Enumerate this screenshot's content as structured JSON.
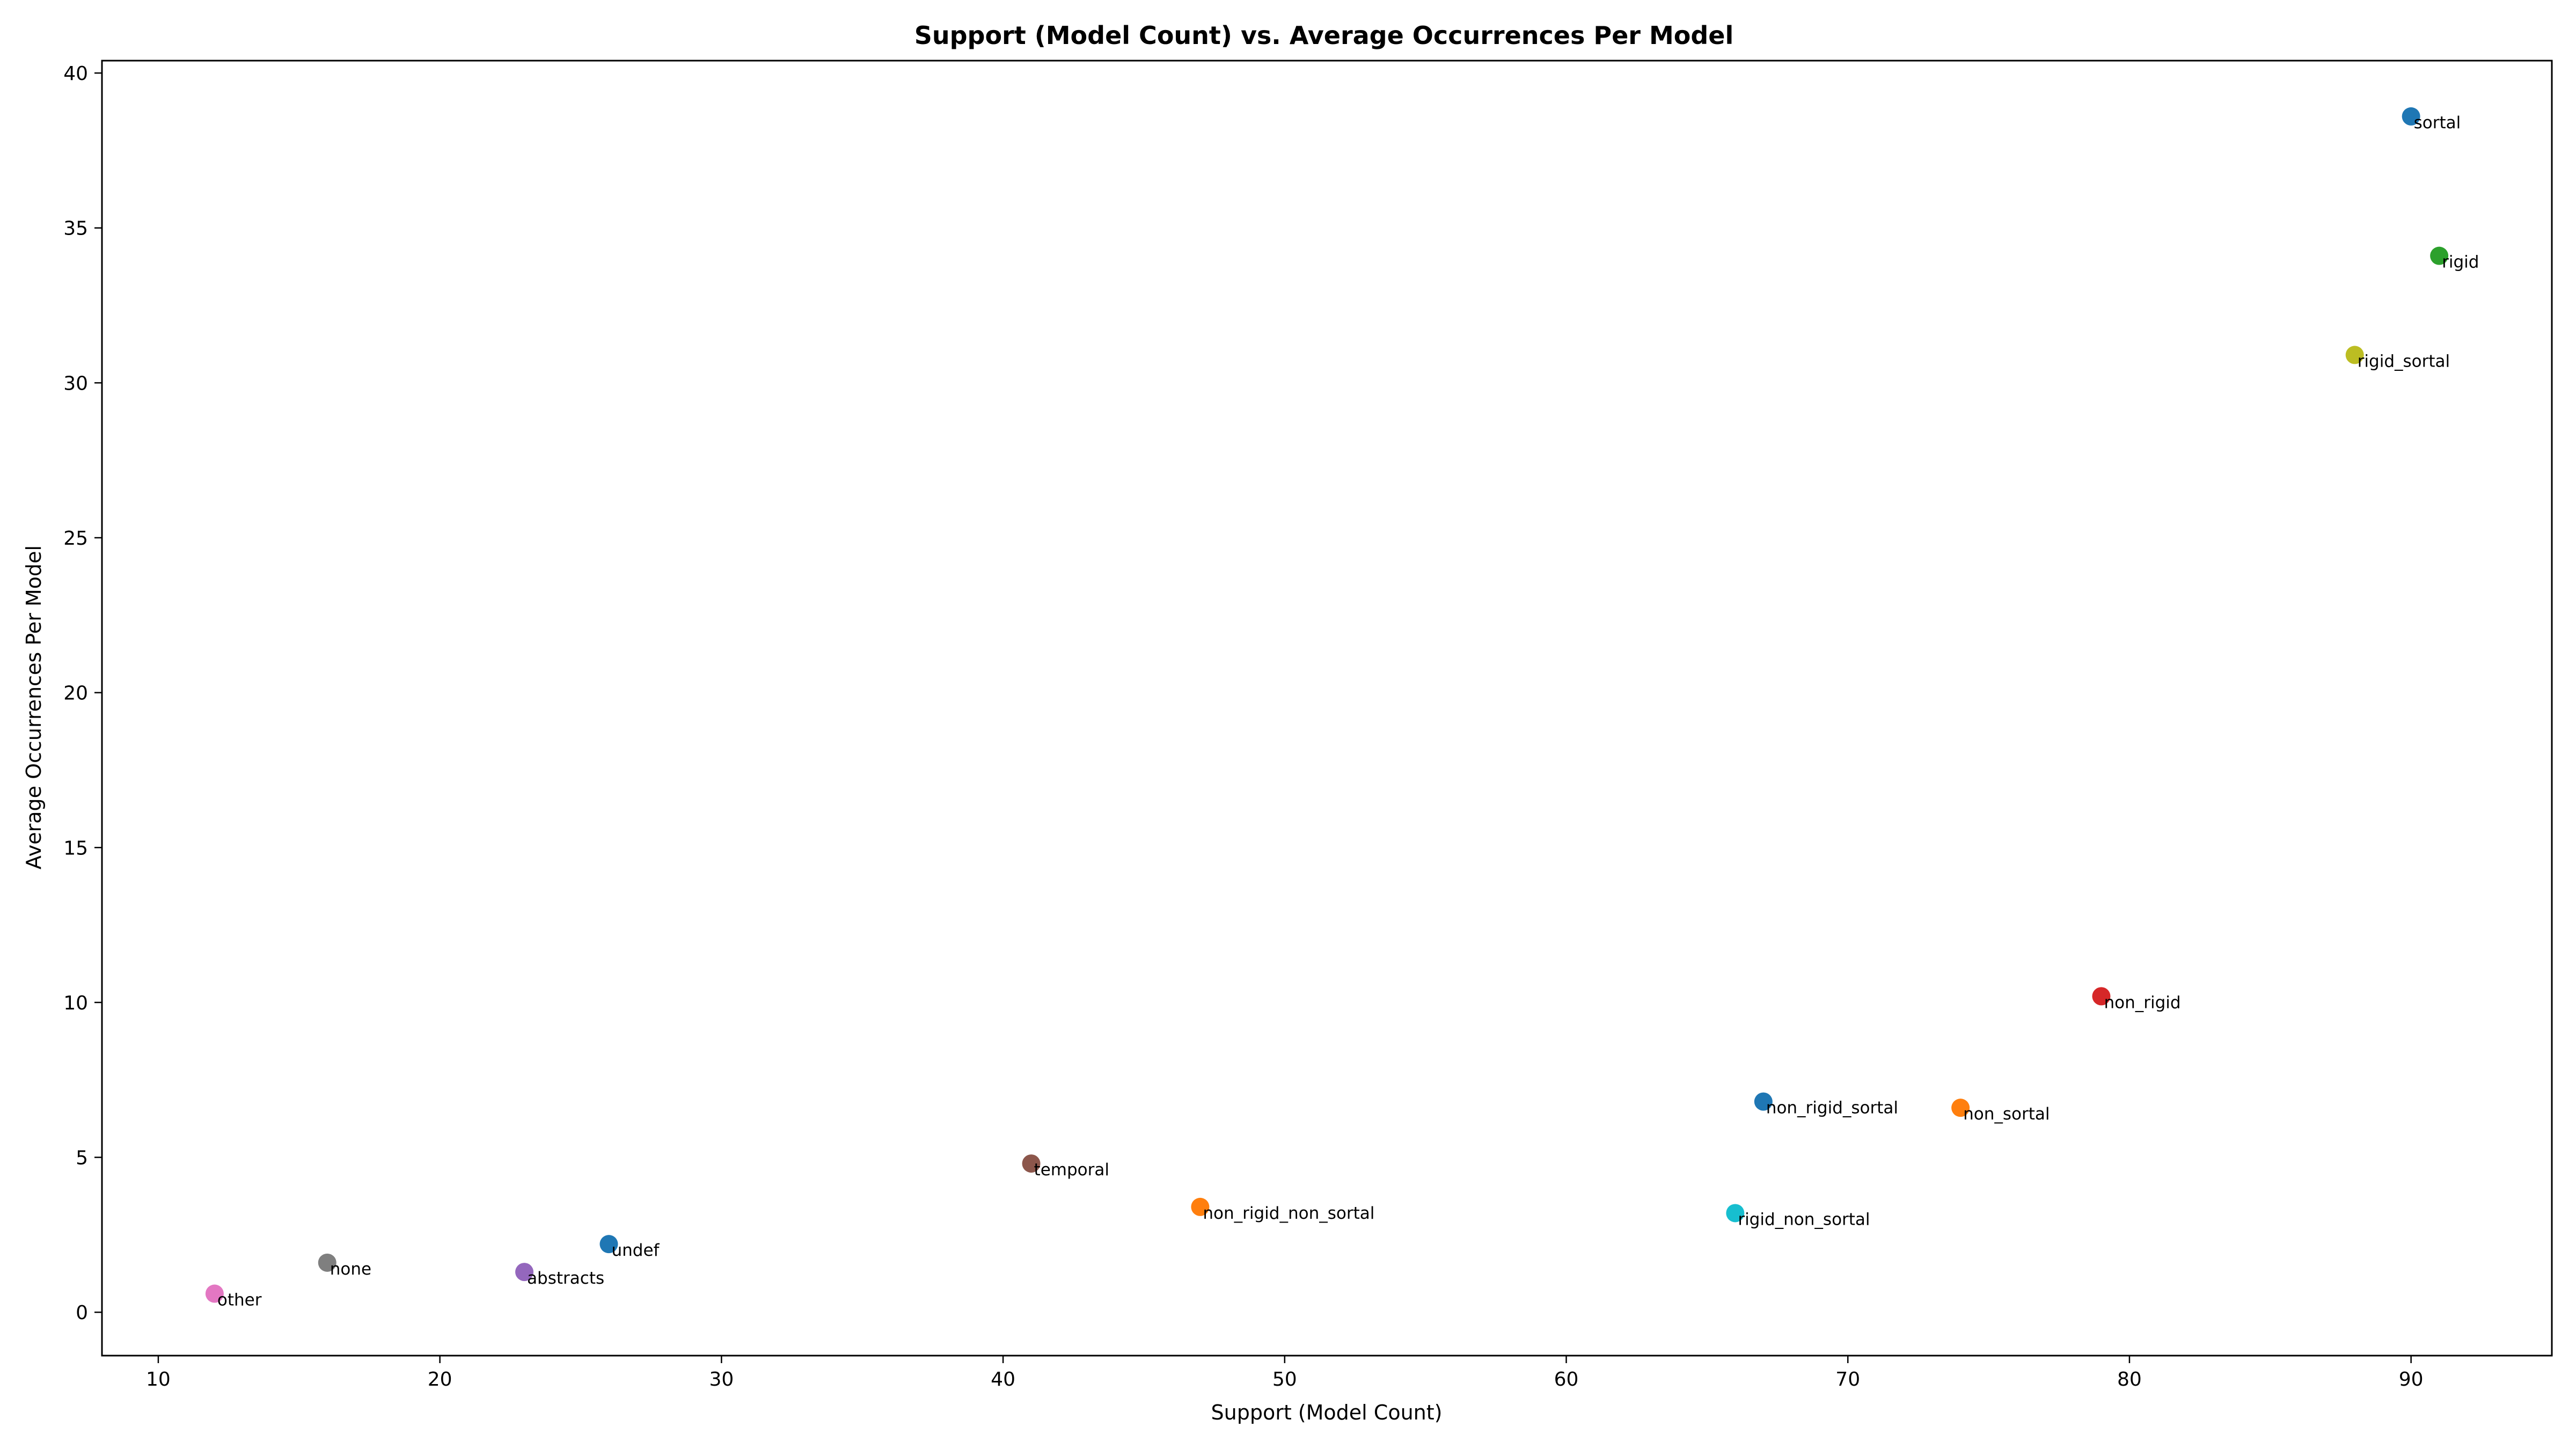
{
  "chart_data": {
    "type": "scatter",
    "title": "Support (Model Count) vs. Average Occurrences Per Model",
    "xlabel": "Support (Model Count)",
    "ylabel": "Average Occurrences Per Model",
    "xlim": [
      8,
      95
    ],
    "ylim": [
      -1.4,
      40.4
    ],
    "xticks": [
      10,
      20,
      30,
      40,
      50,
      60,
      70,
      80,
      90
    ],
    "yticks": [
      0,
      5,
      10,
      15,
      20,
      25,
      30,
      35,
      40
    ],
    "grid": false,
    "legend": "none",
    "points": [
      {
        "label": "sortal",
        "x": 90,
        "y": 38.6,
        "color": "#1f77b4"
      },
      {
        "label": "rigid",
        "x": 91,
        "y": 34.1,
        "color": "#2ca02c"
      },
      {
        "label": "rigid_sortal",
        "x": 88,
        "y": 30.9,
        "color": "#bcbd22"
      },
      {
        "label": "non_rigid",
        "x": 79,
        "y": 10.2,
        "color": "#d62728"
      },
      {
        "label": "non_rigid_sortal",
        "x": 67,
        "y": 6.8,
        "color": "#1f77b4"
      },
      {
        "label": "non_sortal",
        "x": 74,
        "y": 6.6,
        "color": "#ff7f0e"
      },
      {
        "label": "temporal",
        "x": 41,
        "y": 4.8,
        "color": "#8c564b"
      },
      {
        "label": "non_rigid_non_sortal",
        "x": 47,
        "y": 3.4,
        "color": "#ff7f0e"
      },
      {
        "label": "rigid_non_sortal",
        "x": 66,
        "y": 3.2,
        "color": "#17becf"
      },
      {
        "label": "undef",
        "x": 26,
        "y": 2.2,
        "color": "#1f77b4"
      },
      {
        "label": "none",
        "x": 16,
        "y": 1.6,
        "color": "#7f7f7f"
      },
      {
        "label": "abstracts",
        "x": 23,
        "y": 1.3,
        "color": "#9467bd"
      },
      {
        "label": "other",
        "x": 12,
        "y": 0.6,
        "color": "#e377c2"
      }
    ]
  }
}
